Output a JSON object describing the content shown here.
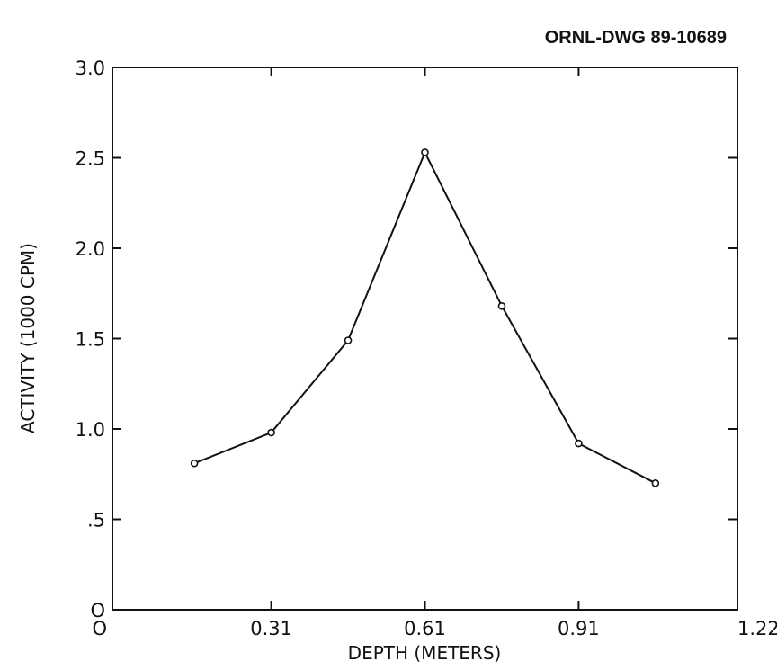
{
  "figure": {
    "drawing_id": "ORNL-DWG 89-10689"
  },
  "chart_data": {
    "type": "line",
    "title": "",
    "xlabel": "DEPTH (METERS)",
    "ylabel": "ACTIVITY (1000 CPM)",
    "xlim": [
      0,
      1.22
    ],
    "ylim": [
      0,
      3.0
    ],
    "grid": false,
    "x_ticks": [
      {
        "value": 0,
        "label": "O"
      },
      {
        "value": 0.31,
        "label": "0.31"
      },
      {
        "value": 0.61,
        "label": "0.61"
      },
      {
        "value": 0.91,
        "label": "0.91"
      },
      {
        "value": 1.22,
        "label": "1.22"
      }
    ],
    "y_ticks": [
      {
        "value": 0,
        "label": "O"
      },
      {
        "value": 0.5,
        "label": ".5"
      },
      {
        "value": 1.0,
        "label": "1.0"
      },
      {
        "value": 1.5,
        "label": "1.5"
      },
      {
        "value": 2.0,
        "label": "2.0"
      },
      {
        "value": 2.5,
        "label": "2.5"
      },
      {
        "value": 3.0,
        "label": "3.0"
      }
    ],
    "series": [
      {
        "x": [
          0.16,
          0.31,
          0.46,
          0.61,
          0.76,
          0.91,
          1.06
        ],
        "y": [
          0.81,
          0.98,
          1.49,
          2.53,
          1.68,
          0.92,
          0.7
        ]
      }
    ]
  }
}
